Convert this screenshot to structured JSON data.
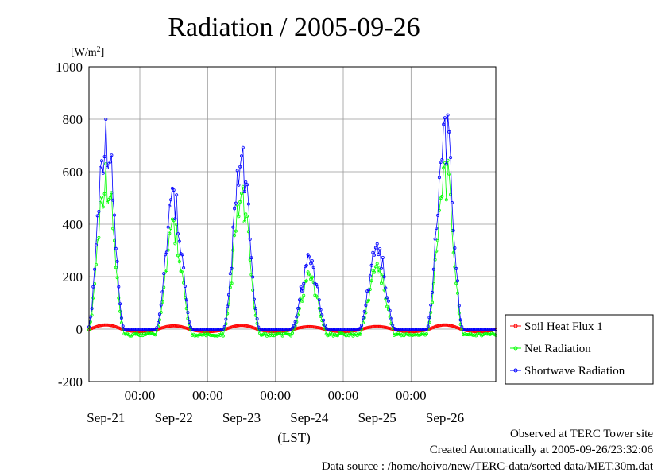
{
  "chart_data": {
    "type": "line",
    "title": "Radiation / 2005-09-26",
    "ylabel_unit_prefix": "[W/m",
    "ylabel_unit_sup": "2",
    "ylabel_unit_suffix": "]",
    "xlabel": "(LST)",
    "ylim": [
      -200,
      1000
    ],
    "yticks": [
      -200,
      0,
      200,
      400,
      600,
      800,
      1000
    ],
    "ytick_labels": [
      "-200",
      "0",
      "200",
      "400",
      "600",
      "800",
      "1000"
    ],
    "xlim_days": [
      -0.25,
      5.75
    ],
    "x_time_ticks": [
      {
        "day": 0.5,
        "label": "00:00"
      },
      {
        "day": 1.5,
        "label": "00:00"
      },
      {
        "day": 2.5,
        "label": "00:00"
      },
      {
        "day": 3.5,
        "label": "00:00"
      },
      {
        "day": 4.5,
        "label": "00:00"
      }
    ],
    "x_date_labels": [
      {
        "day": 0,
        "label": "Sep-21"
      },
      {
        "day": 1,
        "label": "Sep-22"
      },
      {
        "day": 2,
        "label": "Sep-23"
      },
      {
        "day": 3,
        "label": "Sep-24"
      },
      {
        "day": 4,
        "label": "Sep-25"
      },
      {
        "day": 5,
        "label": "Sep-26"
      }
    ],
    "grid": true,
    "legend_position": "right",
    "series": [
      {
        "name": "Soil Heat Flux 1",
        "color": "#ff0000"
      },
      {
        "name": "Net Radiation",
        "color": "#00ff00"
      },
      {
        "name": "Shortwave Radiation",
        "color": "#0000ff"
      }
    ],
    "sample_interval_hours": 0.5,
    "shortwave_peaks": [
      {
        "day": 0.0,
        "peak": 800
      },
      {
        "day": 1.0,
        "peak": 530
      },
      {
        "day": 2.0,
        "peak": 660
      },
      {
        "day": 3.0,
        "peak": 275
      },
      {
        "day": 4.0,
        "peak": 325
      },
      {
        "day": 5.0,
        "peak": 805
      }
    ]
  },
  "footer": {
    "line1": "Observed at TERC Tower site",
    "line2": "Created Automatically at 2005-09-26/23:32:06",
    "line3": "Data source : /home/hoivo/new/TERC-data/sorted  data/MET.30m.dat"
  }
}
